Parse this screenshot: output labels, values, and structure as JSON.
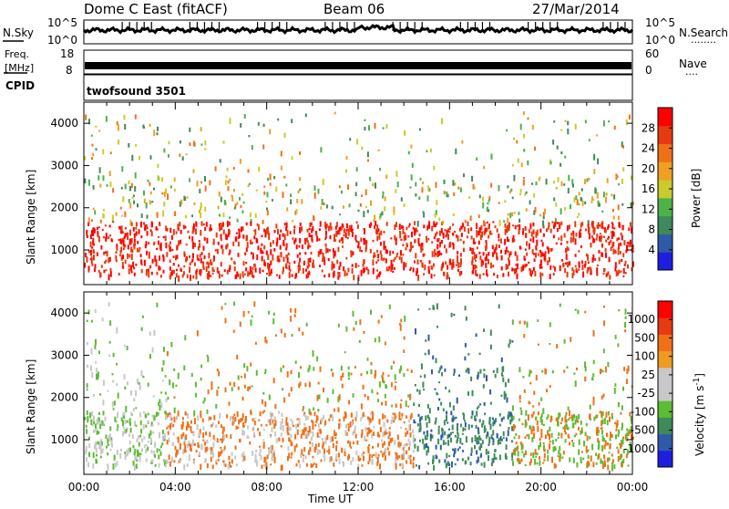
{
  "header": {
    "title": "Dome C East (fitACF)",
    "beam": "Beam 06",
    "date": "27/Mar/2014"
  },
  "colors": {
    "power_scale": [
      "#1e1ee0",
      "#2e5aa8",
      "#3f8a5a",
      "#4cb24a",
      "#c9cc2a",
      "#f0a020",
      "#f07018",
      "#e83a10",
      "#ff0000"
    ],
    "velocity_scale": [
      "#ff0000",
      "#e83a10",
      "#f07018",
      "#f09a20",
      "#c8c8c8",
      "#c8c8c8",
      "#5cbc34",
      "#3f8a5a",
      "#2e5aa8",
      "#1e1ee0"
    ]
  },
  "chart_data": [
    {
      "type": "line",
      "panel": "noise",
      "left_label": "N.Sky",
      "right_label": "N.Search",
      "left_ticks": [
        "10^5",
        "10^0"
      ],
      "right_ticks": [
        "10^5",
        "10^0"
      ],
      "right_marker": "........",
      "scale": "log",
      "x_range": [
        "00:00",
        "24:00"
      ]
    },
    {
      "type": "line",
      "panel": "frequency-nave",
      "left_label": "Freq.",
      "left_unit": "[MHz]",
      "right_label": "Nave",
      "left_ticks": [
        "18",
        "8"
      ],
      "right_ticks": [
        "60",
        "0"
      ],
      "right_marker": "....",
      "x_range": [
        "00:00",
        "24:00"
      ]
    },
    {
      "type": "table",
      "panel": "cpid",
      "label": "CPID",
      "program": "twofsound 3501"
    },
    {
      "type": "heatmap",
      "panel": "power",
      "ylabel": "Slant Range [km]",
      "xlabel": "",
      "yticks": [
        1000,
        2000,
        3000,
        4000
      ],
      "ylim": [
        180,
        4500
      ],
      "xticks": [
        "00:00",
        "04:00",
        "08:00",
        "12:00",
        "16:00",
        "20:00",
        "00:00"
      ],
      "colorbar_label": "Power [dB]",
      "colorbar_ticks": [
        28,
        24,
        20,
        16,
        12,
        8,
        4
      ],
      "color_range": [
        0,
        32
      ]
    },
    {
      "type": "heatmap",
      "panel": "velocity",
      "ylabel": "Slant Range [km]",
      "xlabel": "Time UT",
      "yticks": [
        1000,
        2000,
        3000,
        4000
      ],
      "ylim": [
        180,
        4500
      ],
      "xticks": [
        "00:00",
        "04:00",
        "08:00",
        "12:00",
        "16:00",
        "20:00",
        "00:00"
      ],
      "colorbar_label": "Velocity [m s",
      "colorbar_label_superscript": "-1",
      "colorbar_label_end": "]",
      "colorbar_ticks": [
        "1000",
        "500",
        "100",
        "25",
        "-25",
        "-100",
        "-500",
        "-1000"
      ]
    }
  ]
}
